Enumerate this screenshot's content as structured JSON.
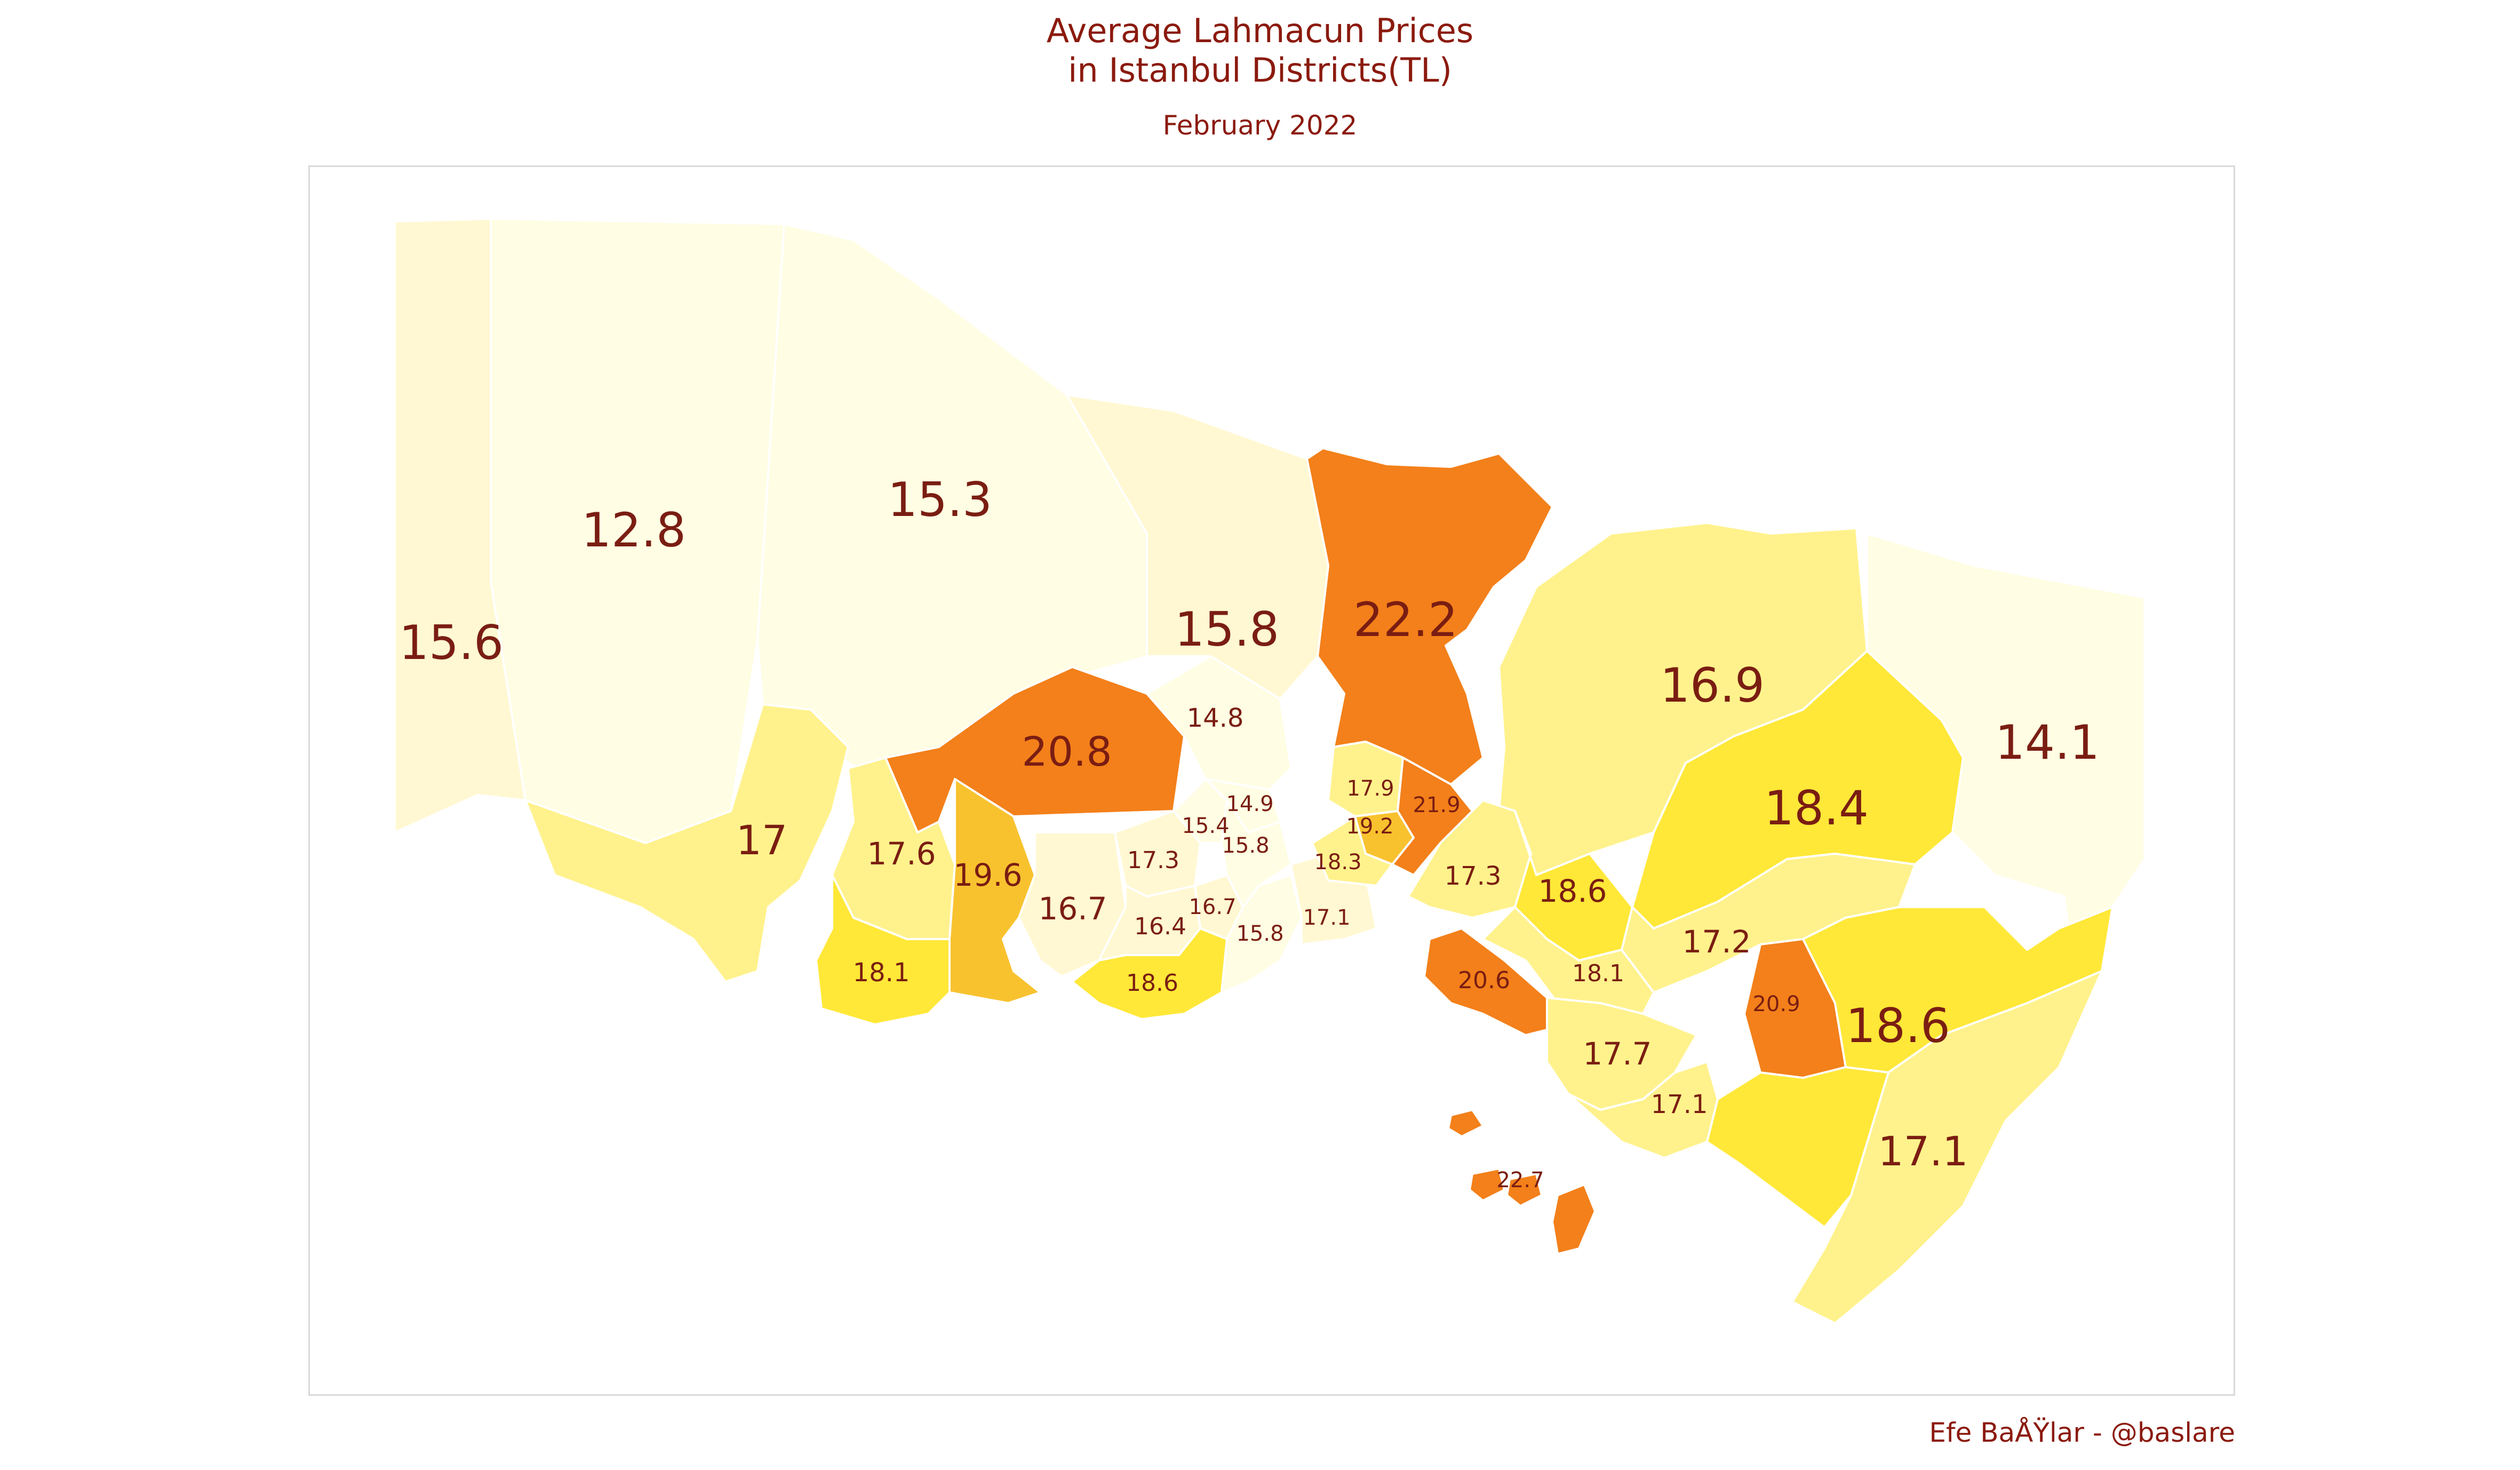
{
  "title_line1": "Average Lahmacun Prices",
  "title_line2": "in Istanbul Districts(TL)",
  "subtitle": "February 2022",
  "caption": "Efe BaÅŸlar - @baslare",
  "colors": {
    "very_low": "#fffde3",
    "low": "#fff8d2",
    "mid_low": "#fff28c",
    "mid": "#ffe838",
    "mid_high": "#f8c22f",
    "high": "#f3801a",
    "label": "#7a1d12",
    "title": "#8B1A0E",
    "frame": "#d9d9d9"
  },
  "districts": [
    {
      "value": "15.6"
    },
    {
      "value": "12.8"
    },
    {
      "value": "15.3"
    },
    {
      "value": "15.8"
    },
    {
      "value": "22.2"
    },
    {
      "value": "16.9"
    },
    {
      "value": "14.1"
    },
    {
      "value": "18.4"
    },
    {
      "value": "20.8"
    },
    {
      "value": "14.8"
    },
    {
      "value": "17"
    },
    {
      "value": "17.6"
    },
    {
      "value": "19.6"
    },
    {
      "value": "18.1"
    },
    {
      "value": "16.7"
    },
    {
      "value": "17.3"
    },
    {
      "value": "16.4"
    },
    {
      "value": "16.7"
    },
    {
      "value": "18.6"
    },
    {
      "value": "15.4"
    },
    {
      "value": "14.9"
    },
    {
      "value": "15.8"
    },
    {
      "value": "15.8"
    },
    {
      "value": "17.1"
    },
    {
      "value": "17.9"
    },
    {
      "value": "19.2"
    },
    {
      "value": "21.9"
    },
    {
      "value": "18.3"
    },
    {
      "value": "17.3"
    },
    {
      "value": "18.6"
    },
    {
      "value": "17.2"
    },
    {
      "value": "20.6"
    },
    {
      "value": "18.1"
    },
    {
      "value": "17.7"
    },
    {
      "value": "20.9"
    },
    {
      "value": "18.6"
    },
    {
      "value": "17.1"
    },
    {
      "value": "17.1"
    },
    {
      "value": "22.7"
    }
  ]
}
